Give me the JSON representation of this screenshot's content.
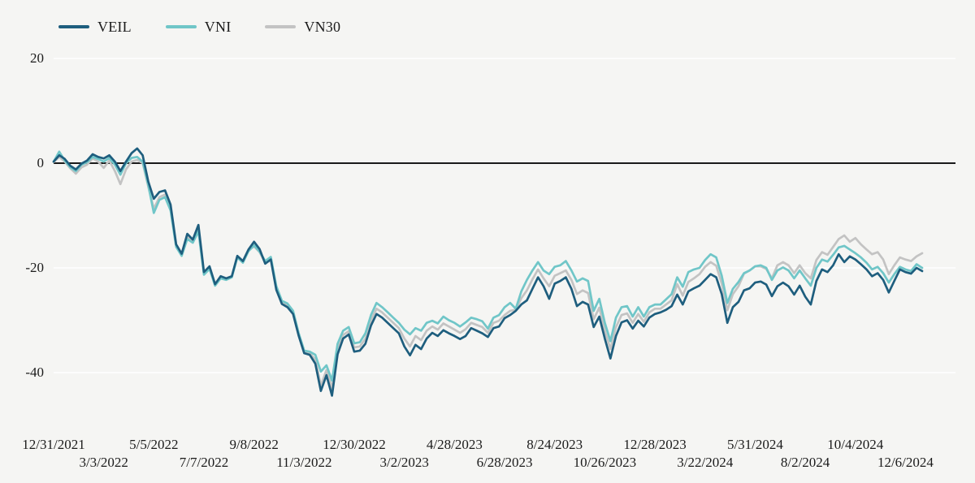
{
  "chart_data": {
    "type": "line",
    "title": "",
    "background_color": "#f5f5f3",
    "grid": "horizontal",
    "gridline_color": "#ffffff",
    "zero_line_color": "#1a1a1a",
    "legend_position": "top-left",
    "y_axis": {
      "ticks": [
        20,
        0,
        -20,
        -40
      ],
      "range": [
        -47,
        24
      ]
    },
    "x_axis": {
      "labels": [
        "12/31/2021",
        "3/3/2022",
        "5/5/2022",
        "7/7/2022",
        "9/8/2022",
        "11/3/2022",
        "12/30/2022",
        "3/2/2023",
        "4/28/2023",
        "6/28/2023",
        "8/24/2023",
        "10/26/2023",
        "12/28/2023",
        "3/22/2024",
        "5/31/2024",
        "8/2/2024",
        "10/4/2024",
        "12/6/2024"
      ],
      "label_every_n_points": 9,
      "staggered": true
    },
    "series": [
      {
        "name": "VEIL",
        "color": "#1e5e7e",
        "values": [
          0.3,
          1.5,
          0.8,
          -0.5,
          -1.2,
          -0.1,
          0.5,
          1.7,
          1.2,
          0.9,
          1.5,
          0.3,
          -1.5,
          0.3,
          1.9,
          2.8,
          1.5,
          -3.5,
          -6.8,
          -5.5,
          -5.2,
          -7.9,
          -15.5,
          -17.3,
          -13.5,
          -14.6,
          -11.8,
          -20.8,
          -19.7,
          -23.1,
          -21.6,
          -22.0,
          -21.6,
          -17.7,
          -18.7,
          -16.5,
          -15.0,
          -16.4,
          -19.2,
          -18.4,
          -24.2,
          -26.9,
          -27.5,
          -28.8,
          -32.9,
          -36.3,
          -36.6,
          -38.3,
          -43.5,
          -40.5,
          -44.4,
          -36.5,
          -33.5,
          -32.7,
          -36.0,
          -35.8,
          -34.5,
          -31.0,
          -28.8,
          -29.5,
          -30.5,
          -31.5,
          -32.5,
          -35.0,
          -36.7,
          -34.7,
          -35.5,
          -33.5,
          -32.4,
          -33.0,
          -31.9,
          -32.5,
          -33.0,
          -33.6,
          -33.0,
          -31.5,
          -32.0,
          -32.5,
          -33.2,
          -31.5,
          -31.2,
          -29.6,
          -29.0,
          -28.2,
          -27.0,
          -26.2,
          -24.0,
          -21.8,
          -23.5,
          -25.9,
          -23.0,
          -22.5,
          -21.8,
          -24.0,
          -27.3,
          -26.5,
          -27.0,
          -31.3,
          -29.3,
          -33.5,
          -37.3,
          -33.0,
          -30.4,
          -30.0,
          -31.6,
          -30.1,
          -31.2,
          -29.5,
          -28.8,
          -28.5,
          -28.0,
          -27.3,
          -25.1,
          -27.0,
          -24.5,
          -23.9,
          -23.4,
          -22.3,
          -21.2,
          -21.8,
          -25.0,
          -30.5,
          -27.5,
          -26.5,
          -24.3,
          -23.9,
          -22.8,
          -22.6,
          -23.2,
          -25.4,
          -23.5,
          -22.8,
          -23.5,
          -25.1,
          -23.4,
          -25.5,
          -27.0,
          -22.5,
          -20.3,
          -20.8,
          -19.5,
          -17.4,
          -18.9,
          -17.8,
          -18.4,
          -19.3,
          -20.3,
          -21.6,
          -21.0,
          -22.3,
          -24.7,
          -22.5,
          -20.3,
          -20.8,
          -21.1,
          -20.0,
          -20.6
        ]
      },
      {
        "name": "VNI",
        "color": "#70c6c8",
        "values": [
          0.3,
          2.2,
          0.5,
          -0.8,
          -1.5,
          -0.3,
          0.2,
          1.2,
          0.8,
          0.3,
          1.0,
          -0.3,
          -2.2,
          0.0,
          1.0,
          1.2,
          0.3,
          -4.2,
          -9.5,
          -7.0,
          -6.5,
          -9.0,
          -16.0,
          -17.7,
          -14.5,
          -15.2,
          -13.0,
          -21.3,
          -20.2,
          -23.4,
          -22.0,
          -22.3,
          -21.8,
          -18.0,
          -19.0,
          -16.8,
          -15.7,
          -16.9,
          -18.7,
          -17.9,
          -23.5,
          -26.3,
          -26.8,
          -28.2,
          -32.4,
          -35.8,
          -36.0,
          -36.6,
          -39.8,
          -38.6,
          -41.5,
          -34.5,
          -32.0,
          -31.3,
          -34.4,
          -34.2,
          -32.5,
          -29.0,
          -26.7,
          -27.5,
          -28.5,
          -29.5,
          -30.5,
          -31.8,
          -32.7,
          -31.5,
          -32.0,
          -30.5,
          -30.1,
          -30.6,
          -29.3,
          -30.0,
          -30.5,
          -31.2,
          -30.4,
          -29.5,
          -29.8,
          -30.2,
          -31.6,
          -29.5,
          -29.0,
          -27.5,
          -26.7,
          -27.8,
          -24.5,
          -22.3,
          -20.5,
          -18.9,
          -20.5,
          -21.2,
          -19.8,
          -19.5,
          -18.7,
          -20.5,
          -22.6,
          -22.0,
          -22.5,
          -28.2,
          -25.9,
          -30.5,
          -34.0,
          -29.5,
          -27.5,
          -27.3,
          -29.3,
          -27.5,
          -29.3,
          -27.5,
          -27.0,
          -27.0,
          -26.0,
          -25.0,
          -21.8,
          -23.6,
          -20.8,
          -20.3,
          -20.0,
          -18.5,
          -17.4,
          -18.0,
          -21.5,
          -26.7,
          -24.0,
          -22.7,
          -21.0,
          -20.5,
          -19.7,
          -19.5,
          -20.0,
          -22.3,
          -20.5,
          -19.9,
          -20.5,
          -22.0,
          -20.5,
          -22.0,
          -23.4,
          -20.0,
          -18.4,
          -18.8,
          -17.5,
          -16.1,
          -15.8,
          -16.5,
          -17.2,
          -18.0,
          -19.0,
          -20.3,
          -19.8,
          -21.0,
          -22.8,
          -21.2,
          -19.8,
          -20.3,
          -20.6,
          -19.3,
          -20.0
        ]
      },
      {
        "name": "VN30",
        "color": "#c3c3c3",
        "values": [
          0.2,
          1.2,
          0.3,
          -1.0,
          -2.0,
          -0.8,
          -0.3,
          0.9,
          0.3,
          -0.9,
          0.5,
          -1.5,
          -4.0,
          -1.2,
          0.3,
          0.6,
          0.0,
          -4.5,
          -8.7,
          -6.5,
          -6.0,
          -8.7,
          -15.8,
          -17.4,
          -14.0,
          -14.8,
          -12.6,
          -21.0,
          -20.0,
          -23.2,
          -21.8,
          -22.1,
          -21.7,
          -17.8,
          -18.8,
          -16.6,
          -15.9,
          -17.0,
          -19.0,
          -18.2,
          -23.8,
          -26.6,
          -27.2,
          -28.5,
          -32.6,
          -36.0,
          -36.3,
          -37.5,
          -42.5,
          -39.5,
          -43.0,
          -35.5,
          -32.8,
          -32.1,
          -35.2,
          -35.0,
          -33.5,
          -30.0,
          -27.8,
          -28.5,
          -29.5,
          -30.5,
          -31.5,
          -33.5,
          -35.0,
          -33.0,
          -33.8,
          -32.0,
          -31.2,
          -31.8,
          -30.6,
          -31.2,
          -31.8,
          -32.4,
          -31.7,
          -30.5,
          -30.9,
          -31.3,
          -32.4,
          -30.5,
          -30.1,
          -29.0,
          -28.2,
          -28.0,
          -25.8,
          -24.3,
          -22.2,
          -20.3,
          -22.0,
          -23.5,
          -21.5,
          -21.0,
          -20.5,
          -22.3,
          -25.0,
          -24.3,
          -24.8,
          -29.8,
          -27.6,
          -32.0,
          -35.5,
          -31.3,
          -29.0,
          -28.7,
          -30.5,
          -28.8,
          -30.3,
          -28.5,
          -27.8,
          -27.8,
          -27.0,
          -26.2,
          -23.1,
          -25.3,
          -22.7,
          -22.0,
          -21.2,
          -19.8,
          -18.9,
          -19.6,
          -23.0,
          -28.1,
          -25.0,
          -23.5,
          -21.1,
          -20.5,
          -19.7,
          -19.7,
          -20.2,
          -22.0,
          -19.5,
          -18.9,
          -19.5,
          -21.0,
          -19.5,
          -21.0,
          -22.0,
          -18.5,
          -17.0,
          -17.5,
          -16.0,
          -14.5,
          -13.8,
          -15.0,
          -14.3,
          -15.5,
          -16.5,
          -17.4,
          -17.0,
          -18.4,
          -21.2,
          -19.5,
          -18.0,
          -18.4,
          -18.7,
          -17.8,
          -17.2
        ]
      }
    ]
  }
}
